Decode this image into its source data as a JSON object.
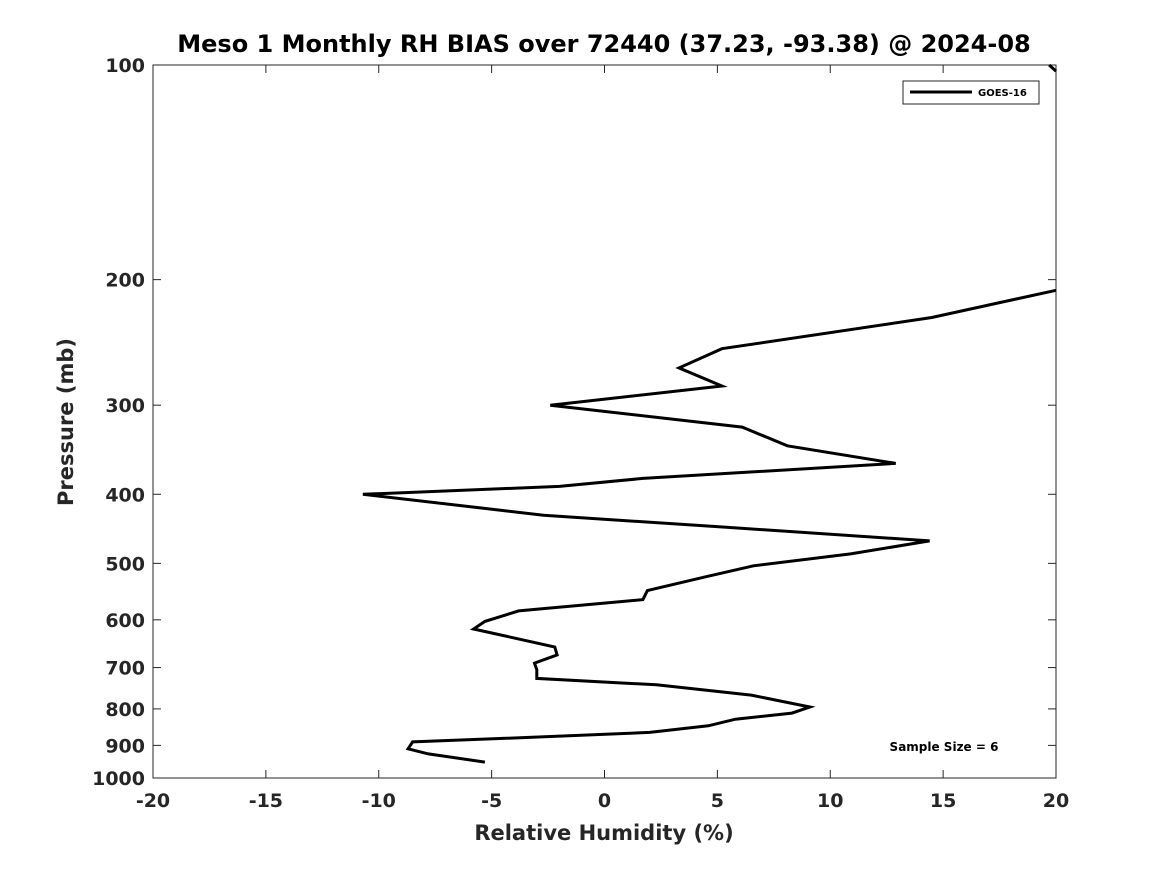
{
  "chart_data": {
    "type": "line",
    "title": "Meso 1 Monthly RH BIAS over 72440 (37.23, -93.38) @ 2024-08",
    "xlabel": "Relative Humidity (%)",
    "ylabel": "Pressure (mb)",
    "xlim": [
      -20,
      20
    ],
    "ylim": [
      1000,
      100
    ],
    "y_scale": "log",
    "y_reversed": true,
    "x_ticks": [
      "-20",
      "-15",
      "-10",
      "-5",
      "0",
      "5",
      "10",
      "15",
      "20"
    ],
    "y_ticks": [
      "100",
      "200",
      "300",
      "400",
      "500",
      "600",
      "700",
      "800",
      "900",
      "1000"
    ],
    "grid": false,
    "legend_position": "top-right",
    "annotation": "Sample Size = 6",
    "series": [
      {
        "name": "GOES-16",
        "color": "#000000",
        "points": [
          {
            "x": -5.3,
            "y": 950
          },
          {
            "x": -7.8,
            "y": 925
          },
          {
            "x": -8.7,
            "y": 910
          },
          {
            "x": -8.5,
            "y": 890
          },
          {
            "x": -4.5,
            "y": 880
          },
          {
            "x": 2.0,
            "y": 863
          },
          {
            "x": 4.6,
            "y": 845
          },
          {
            "x": 5.8,
            "y": 827
          },
          {
            "x": 8.3,
            "y": 811
          },
          {
            "x": 9.1,
            "y": 795
          },
          {
            "x": 6.5,
            "y": 765
          },
          {
            "x": 2.3,
            "y": 740
          },
          {
            "x": -3.0,
            "y": 725
          },
          {
            "x": -3.0,
            "y": 705
          },
          {
            "x": -3.1,
            "y": 690
          },
          {
            "x": -2.1,
            "y": 672
          },
          {
            "x": -2.2,
            "y": 655
          },
          {
            "x": -5.8,
            "y": 618
          },
          {
            "x": -5.3,
            "y": 603
          },
          {
            "x": -3.8,
            "y": 583
          },
          {
            "x": 1.7,
            "y": 562
          },
          {
            "x": 1.9,
            "y": 546
          },
          {
            "x": 4.5,
            "y": 522
          },
          {
            "x": 6.6,
            "y": 504
          },
          {
            "x": 10.9,
            "y": 485
          },
          {
            "x": 14.4,
            "y": 465
          },
          {
            "x": 5.4,
            "y": 445
          },
          {
            "x": -2.7,
            "y": 428
          },
          {
            "x": -10.7,
            "y": 400
          },
          {
            "x": -2.0,
            "y": 390
          },
          {
            "x": 1.7,
            "y": 380
          },
          {
            "x": 12.9,
            "y": 362
          },
          {
            "x": 8.1,
            "y": 342
          },
          {
            "x": 6.1,
            "y": 322
          },
          {
            "x": -2.4,
            "y": 300
          },
          {
            "x": 5.2,
            "y": 282
          },
          {
            "x": 3.3,
            "y": 266
          },
          {
            "x": 5.2,
            "y": 250
          },
          {
            "x": 14.5,
            "y": 226
          },
          {
            "x": 20.0,
            "y": 207
          }
        ],
        "extra_segment": [
          {
            "x": 19.7,
            "y": 100
          },
          {
            "x": 20.0,
            "y": 102
          }
        ]
      }
    ]
  }
}
